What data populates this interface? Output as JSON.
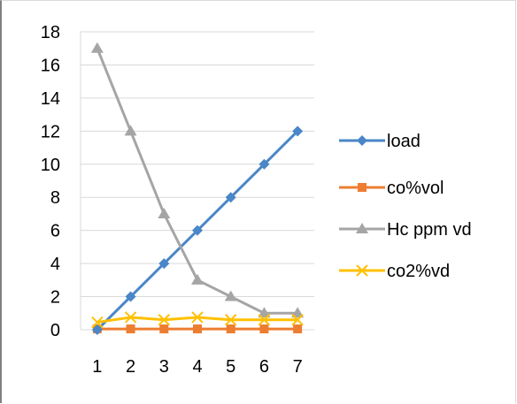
{
  "chart_data": {
    "type": "line",
    "x": [
      1,
      2,
      3,
      4,
      5,
      6,
      7
    ],
    "x_tick_labels": [
      "1",
      "2",
      "3",
      "4",
      "5",
      "6",
      "7"
    ],
    "ylim": [
      0,
      18
    ],
    "y_ticks": [
      0,
      2,
      4,
      6,
      8,
      10,
      12,
      14,
      16,
      18
    ],
    "y_tick_labels": [
      "0",
      "2",
      "4",
      "6",
      "8",
      "10",
      "12",
      "14",
      "16",
      "18"
    ],
    "grid": true,
    "legend_position": "right",
    "series": [
      {
        "name": "load",
        "values": [
          0,
          2,
          4,
          6,
          8,
          10,
          12
        ],
        "color": "#4a86c8",
        "marker": "diamond"
      },
      {
        "name": "co%vol",
        "values": [
          0.05,
          0.05,
          0.05,
          0.05,
          0.05,
          0.05,
          0.05
        ],
        "color": "#ed7d31",
        "marker": "square"
      },
      {
        "name": "Hc ppm vd",
        "values": [
          17,
          12,
          7,
          3,
          2,
          1,
          1
        ],
        "color": "#a5a5a5",
        "marker": "triangle"
      },
      {
        "name": "co2%vd",
        "values": [
          0.45,
          0.75,
          0.6,
          0.75,
          0.6,
          0.6,
          0.6
        ],
        "color": "#ffc000",
        "marker": "x"
      }
    ]
  }
}
